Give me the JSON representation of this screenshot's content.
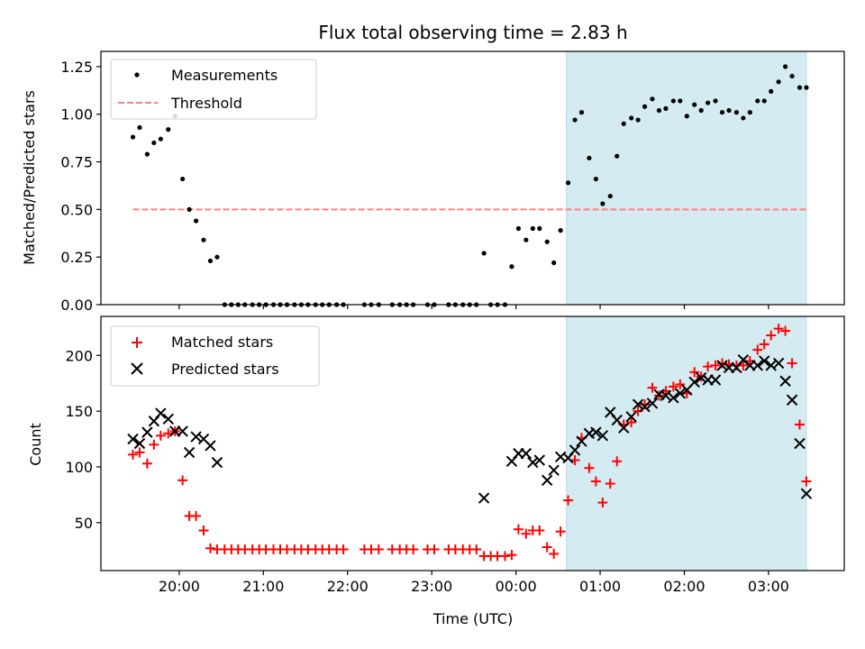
{
  "chart_data": [
    {
      "type": "scatter",
      "title": "Flux total observing time = 2.83 h",
      "xlabel": "",
      "ylabel": "Matched/Predicted stars",
      "xlim": [
        -0.93,
        7.9
      ],
      "ylim": [
        0,
        1.33
      ],
      "yticks": [
        {
          "v": 0.0,
          "label": "0.00"
        },
        {
          "v": 0.25,
          "label": "0.25"
        },
        {
          "v": 0.5,
          "label": "0.50"
        },
        {
          "v": 0.75,
          "label": "0.75"
        },
        {
          "v": 1.0,
          "label": "1.00"
        },
        {
          "v": 1.25,
          "label": "1.25"
        }
      ],
      "legend": "top-left",
      "shaded_region": {
        "x0": 4.6,
        "x1": 7.45,
        "color": "#d4ebf1"
      },
      "threshold": {
        "name": "Threshold",
        "value": 0.5,
        "x0": -0.55,
        "x1": 7.45,
        "color": "#ff7f7f"
      },
      "series": [
        {
          "name": "Measurements",
          "marker": "dot",
          "color": "#000000",
          "points": [
            [
              -0.55,
              0.88
            ],
            [
              -0.47,
              0.93
            ],
            [
              -0.38,
              0.79
            ],
            [
              -0.3,
              0.85
            ],
            [
              -0.22,
              0.87
            ],
            [
              -0.13,
              0.92
            ],
            [
              -0.05,
              0.99
            ],
            [
              0.04,
              0.66
            ],
            [
              0.12,
              0.5
            ],
            [
              0.2,
              0.44
            ],
            [
              0.29,
              0.34
            ],
            [
              0.37,
              0.23
            ],
            [
              0.45,
              0.25
            ],
            [
              0.54,
              0
            ],
            [
              0.62,
              0
            ],
            [
              0.7,
              0
            ],
            [
              0.78,
              0
            ],
            [
              0.87,
              0
            ],
            [
              0.95,
              0
            ],
            [
              1.03,
              0
            ],
            [
              1.12,
              0
            ],
            [
              1.2,
              0
            ],
            [
              1.28,
              0
            ],
            [
              1.37,
              0
            ],
            [
              1.45,
              0
            ],
            [
              1.53,
              0
            ],
            [
              1.62,
              0
            ],
            [
              1.7,
              0
            ],
            [
              1.78,
              0
            ],
            [
              1.87,
              0
            ],
            [
              1.95,
              0
            ],
            [
              2.2,
              0
            ],
            [
              2.28,
              0
            ],
            [
              2.37,
              0
            ],
            [
              2.53,
              0
            ],
            [
              2.62,
              0
            ],
            [
              2.7,
              0
            ],
            [
              2.78,
              0
            ],
            [
              2.95,
              0
            ],
            [
              3.03,
              0
            ],
            [
              3.2,
              0
            ],
            [
              3.28,
              0
            ],
            [
              3.37,
              0
            ],
            [
              3.45,
              0
            ],
            [
              3.53,
              0
            ],
            [
              3.7,
              0
            ],
            [
              3.78,
              0
            ],
            [
              3.87,
              0
            ],
            [
              3.62,
              0.27
            ],
            [
              3.95,
              0.2
            ],
            [
              4.03,
              0.4
            ],
            [
              4.12,
              0.34
            ],
            [
              4.2,
              0.4
            ],
            [
              4.28,
              0.4
            ],
            [
              4.37,
              0.33
            ],
            [
              4.45,
              0.22
            ],
            [
              4.53,
              0.39
            ],
            [
              4.62,
              0.64
            ],
            [
              4.7,
              0.97
            ],
            [
              4.78,
              1.01
            ],
            [
              4.87,
              0.77
            ],
            [
              4.95,
              0.66
            ],
            [
              5.03,
              0.53
            ],
            [
              5.12,
              0.57
            ],
            [
              5.2,
              0.78
            ],
            [
              5.28,
              0.95
            ],
            [
              5.37,
              0.98
            ],
            [
              5.45,
              0.97
            ],
            [
              5.53,
              1.04
            ],
            [
              5.62,
              1.08
            ],
            [
              5.7,
              1.02
            ],
            [
              5.78,
              1.03
            ],
            [
              5.87,
              1.07
            ],
            [
              5.95,
              1.07
            ],
            [
              6.03,
              0.99
            ],
            [
              6.12,
              1.05
            ],
            [
              6.2,
              1.02
            ],
            [
              6.28,
              1.06
            ],
            [
              6.37,
              1.07
            ],
            [
              6.45,
              1.01
            ],
            [
              6.53,
              1.02
            ],
            [
              6.62,
              1.01
            ],
            [
              6.7,
              0.98
            ],
            [
              6.78,
              1.01
            ],
            [
              6.87,
              1.07
            ],
            [
              6.95,
              1.07
            ],
            [
              7.03,
              1.12
            ],
            [
              7.12,
              1.17
            ],
            [
              7.2,
              1.25
            ],
            [
              7.28,
              1.2
            ],
            [
              7.37,
              1.14
            ],
            [
              7.45,
              1.14
            ]
          ]
        }
      ]
    },
    {
      "type": "scatter",
      "title": "",
      "xlabel": "Time (UTC)",
      "ylabel": "Count",
      "xlim": [
        -0.93,
        7.9
      ],
      "ylim": [
        7,
        235
      ],
      "yticks": [
        {
          "v": 50,
          "label": "50"
        },
        {
          "v": 100,
          "label": "100"
        },
        {
          "v": 150,
          "label": "150"
        },
        {
          "v": 200,
          "label": "200"
        }
      ],
      "xticks": [
        {
          "v": 0,
          "label": "20:00"
        },
        {
          "v": 1,
          "label": "21:00"
        },
        {
          "v": 2,
          "label": "22:00"
        },
        {
          "v": 3,
          "label": "23:00"
        },
        {
          "v": 4,
          "label": "00:00"
        },
        {
          "v": 5,
          "label": "01:00"
        },
        {
          "v": 6,
          "label": "02:00"
        },
        {
          "v": 7,
          "label": "03:00"
        }
      ],
      "legend": "top-left",
      "shaded_region": {
        "x0": 4.6,
        "x1": 7.45,
        "color": "#d4ebf1"
      },
      "series": [
        {
          "name": "Matched stars",
          "marker": "plus",
          "color": "#ff0000",
          "points": [
            [
              -0.55,
              111
            ],
            [
              -0.47,
              113
            ],
            [
              -0.38,
              103
            ],
            [
              -0.3,
              120
            ],
            [
              -0.22,
              128
            ],
            [
              -0.13,
              130
            ],
            [
              -0.05,
              132
            ],
            [
              0.04,
              88
            ],
            [
              0.12,
              56
            ],
            [
              0.2,
              56
            ],
            [
              0.29,
              43
            ],
            [
              0.37,
              27
            ],
            [
              0.45,
              26
            ],
            [
              0.54,
              26
            ],
            [
              0.62,
              26
            ],
            [
              0.7,
              26
            ],
            [
              0.78,
              26
            ],
            [
              0.87,
              26
            ],
            [
              0.95,
              26
            ],
            [
              1.03,
              26
            ],
            [
              1.12,
              26
            ],
            [
              1.2,
              26
            ],
            [
              1.28,
              26
            ],
            [
              1.37,
              26
            ],
            [
              1.45,
              26
            ],
            [
              1.53,
              26
            ],
            [
              1.62,
              26
            ],
            [
              1.7,
              26
            ],
            [
              1.78,
              26
            ],
            [
              1.87,
              26
            ],
            [
              1.95,
              26
            ],
            [
              2.2,
              26
            ],
            [
              2.28,
              26
            ],
            [
              2.37,
              26
            ],
            [
              2.53,
              26
            ],
            [
              2.62,
              26
            ],
            [
              2.7,
              26
            ],
            [
              2.78,
              26
            ],
            [
              2.95,
              26
            ],
            [
              3.03,
              26
            ],
            [
              3.2,
              26
            ],
            [
              3.28,
              26
            ],
            [
              3.37,
              26
            ],
            [
              3.45,
              26
            ],
            [
              3.53,
              26
            ],
            [
              3.62,
              20
            ],
            [
              3.7,
              20
            ],
            [
              3.78,
              20
            ],
            [
              3.87,
              20
            ],
            [
              3.95,
              21
            ],
            [
              4.03,
              44
            ],
            [
              4.12,
              40
            ],
            [
              4.2,
              43
            ],
            [
              4.28,
              43
            ],
            [
              4.37,
              28
            ],
            [
              4.45,
              22
            ],
            [
              4.53,
              42
            ],
            [
              4.62,
              70
            ],
            [
              4.7,
              106
            ],
            [
              4.78,
              126
            ],
            [
              4.87,
              99
            ],
            [
              4.95,
              87
            ],
            [
              5.03,
              68
            ],
            [
              5.12,
              85
            ],
            [
              5.2,
              105
            ],
            [
              5.28,
              138
            ],
            [
              5.37,
              140
            ],
            [
              5.45,
              150
            ],
            [
              5.53,
              156
            ],
            [
              5.62,
              171
            ],
            [
              5.7,
              164
            ],
            [
              5.78,
              168
            ],
            [
              5.87,
              172
            ],
            [
              5.95,
              174
            ],
            [
              6.03,
              166
            ],
            [
              6.12,
              185
            ],
            [
              6.2,
              181
            ],
            [
              6.28,
              190
            ],
            [
              6.37,
              191
            ],
            [
              6.45,
              193
            ],
            [
              6.53,
              192
            ],
            [
              6.62,
              191
            ],
            [
              6.7,
              191
            ],
            [
              6.78,
              195
            ],
            [
              6.87,
              205
            ],
            [
              6.95,
              210
            ],
            [
              7.03,
              218
            ],
            [
              7.12,
              224
            ],
            [
              7.2,
              222
            ],
            [
              7.28,
              193
            ],
            [
              7.37,
              138
            ],
            [
              7.45,
              87
            ]
          ]
        },
        {
          "name": "Predicted stars",
          "marker": "x",
          "color": "#000000",
          "points": [
            [
              -0.55,
              125
            ],
            [
              -0.47,
              121
            ],
            [
              -0.38,
              131
            ],
            [
              -0.3,
              141
            ],
            [
              -0.22,
              148
            ],
            [
              -0.13,
              143
            ],
            [
              -0.05,
              132
            ],
            [
              0.04,
              132
            ],
            [
              0.12,
              113
            ],
            [
              0.2,
              127
            ],
            [
              0.29,
              125
            ],
            [
              0.37,
              119
            ],
            [
              0.45,
              104
            ],
            [
              3.62,
              72
            ],
            [
              3.95,
              105
            ],
            [
              4.03,
              112
            ],
            [
              4.12,
              112
            ],
            [
              4.2,
              104
            ],
            [
              4.28,
              106
            ],
            [
              4.37,
              88
            ],
            [
              4.45,
              97
            ],
            [
              4.53,
              109
            ],
            [
              4.62,
              108
            ],
            [
              4.7,
              115
            ],
            [
              4.78,
              123
            ],
            [
              4.87,
              130
            ],
            [
              4.95,
              131
            ],
            [
              5.03,
              128
            ],
            [
              5.12,
              149
            ],
            [
              5.2,
              142
            ],
            [
              5.28,
              135
            ],
            [
              5.37,
              145
            ],
            [
              5.45,
              156
            ],
            [
              5.53,
              154
            ],
            [
              5.62,
              157
            ],
            [
              5.7,
              165
            ],
            [
              5.78,
              164
            ],
            [
              5.87,
              162
            ],
            [
              5.95,
              166
            ],
            [
              6.03,
              169
            ],
            [
              6.12,
              176
            ],
            [
              6.2,
              180
            ],
            [
              6.28,
              178
            ],
            [
              6.37,
              178
            ],
            [
              6.45,
              191
            ],
            [
              6.53,
              189
            ],
            [
              6.62,
              189
            ],
            [
              6.7,
              196
            ],
            [
              6.78,
              191
            ],
            [
              6.87,
              191
            ],
            [
              6.95,
              195
            ],
            [
              7.03,
              191
            ],
            [
              7.12,
              193
            ],
            [
              7.2,
              177
            ],
            [
              7.28,
              160
            ],
            [
              7.37,
              121
            ],
            [
              7.45,
              76
            ]
          ]
        }
      ]
    }
  ]
}
